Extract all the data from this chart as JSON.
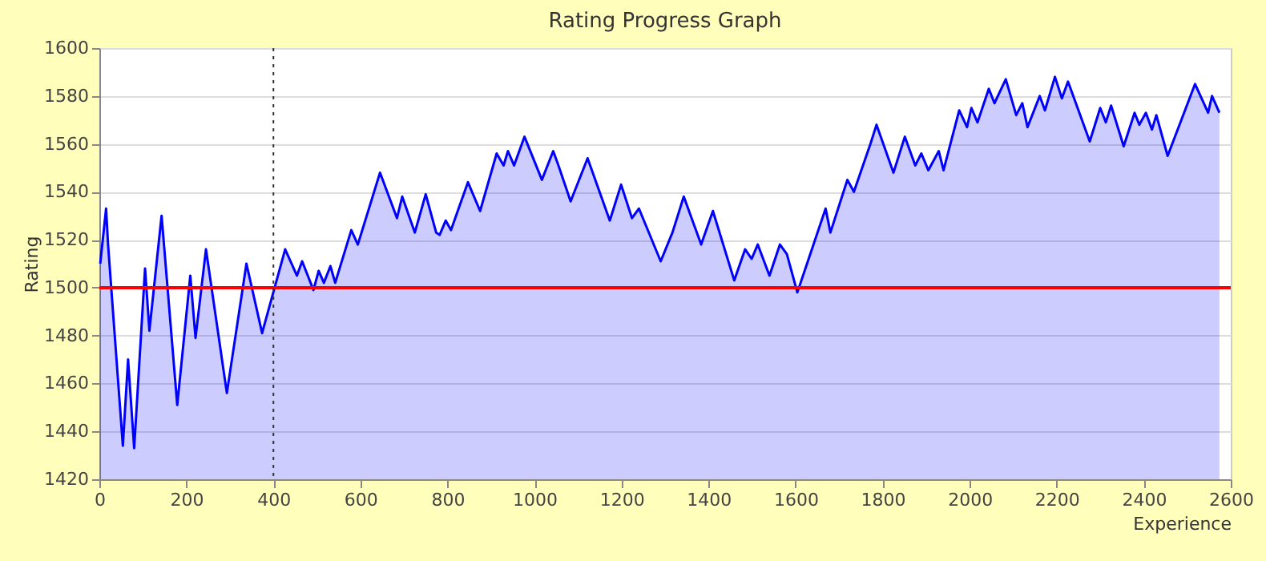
{
  "chart_data": {
    "type": "area",
    "title": "Rating Progress Graph",
    "xlabel": "Experience",
    "ylabel": "Rating",
    "series": [
      {
        "color": "#0000ff",
        "x": [
          2,
          15.5,
          20,
          54,
          66,
          80,
          105,
          115,
          143,
          179,
          209,
          221,
          245,
          293,
          338,
          374,
          427,
          454,
          466,
          492,
          504,
          516,
          531,
          542,
          579,
          594,
          645,
          684,
          696,
          725,
          750,
          774,
          782,
          796,
          808,
          847,
          875,
          913,
          929,
          939,
          953,
          977,
          1017,
          1043,
          1055,
          1083,
          1122,
          1173,
          1199,
          1224,
          1240,
          1290,
          1317,
          1343,
          1383,
          1410,
          1459,
          1484,
          1499,
          1513,
          1540,
          1564,
          1580,
          1604,
          1669,
          1680,
          1719,
          1734,
          1772,
          1786,
          1825,
          1851,
          1875,
          1889,
          1905,
          1929,
          1940,
          1976,
          1994,
          2004,
          2018,
          2044,
          2057,
          2083,
          2107,
          2121,
          2133,
          2161,
          2173,
          2196,
          2212,
          2226,
          2276,
          2300,
          2313,
          2325,
          2354,
          2379,
          2390,
          2405,
          2419,
          2429,
          2455,
          2518,
          2548,
          2557,
          2574
        ],
        "values": [
          1510,
          1533,
          1518,
          1434,
          1470,
          1433,
          1508,
          1482,
          1530,
          1451,
          1505,
          1479,
          1516,
          1456,
          1510,
          1481,
          1516,
          1505,
          1511,
          1499,
          1507,
          1502,
          1509,
          1502,
          1524,
          1518,
          1548,
          1529,
          1538,
          1523,
          1539,
          1523,
          1522,
          1528,
          1524,
          1544,
          1532,
          1556,
          1551,
          1557,
          1551,
          1563,
          1545,
          1557,
          1551,
          1536,
          1554,
          1528,
          1543,
          1529,
          1533,
          1511,
          1523,
          1538,
          1518,
          1532,
          1503,
          1516,
          1512,
          1518,
          1505,
          1518,
          1514,
          1498,
          1533,
          1523,
          1545,
          1540,
          1560,
          1568,
          1548,
          1563,
          1551,
          1556,
          1549,
          1557,
          1549,
          1574,
          1567,
          1575,
          1569,
          1583,
          1577,
          1587,
          1572,
          1577,
          1567,
          1580,
          1574,
          1588,
          1579,
          1586,
          1561,
          1575,
          1569,
          1576,
          1559,
          1573,
          1568,
          1573,
          1566,
          1572,
          1555,
          1585,
          1573,
          1580,
          1573
        ]
      }
    ],
    "xlim": [
      0,
      2600
    ],
    "xticks": [
      0,
      200,
      400,
      600,
      800,
      1000,
      1200,
      1400,
      1600,
      1800,
      2000,
      2200,
      2400,
      2600
    ],
    "ylim": [
      1420,
      1600
    ],
    "yticks": [
      1420,
      1440,
      1460,
      1480,
      1500,
      1520,
      1540,
      1560,
      1580,
      1600
    ],
    "grid": "y",
    "ref_lines": [
      {
        "axis": "y",
        "value": 1500,
        "color": "#ff0000",
        "line_style": "solid"
      },
      {
        "axis": "x",
        "value": 400,
        "color": "#333333",
        "line_style": "dotted"
      }
    ]
  }
}
